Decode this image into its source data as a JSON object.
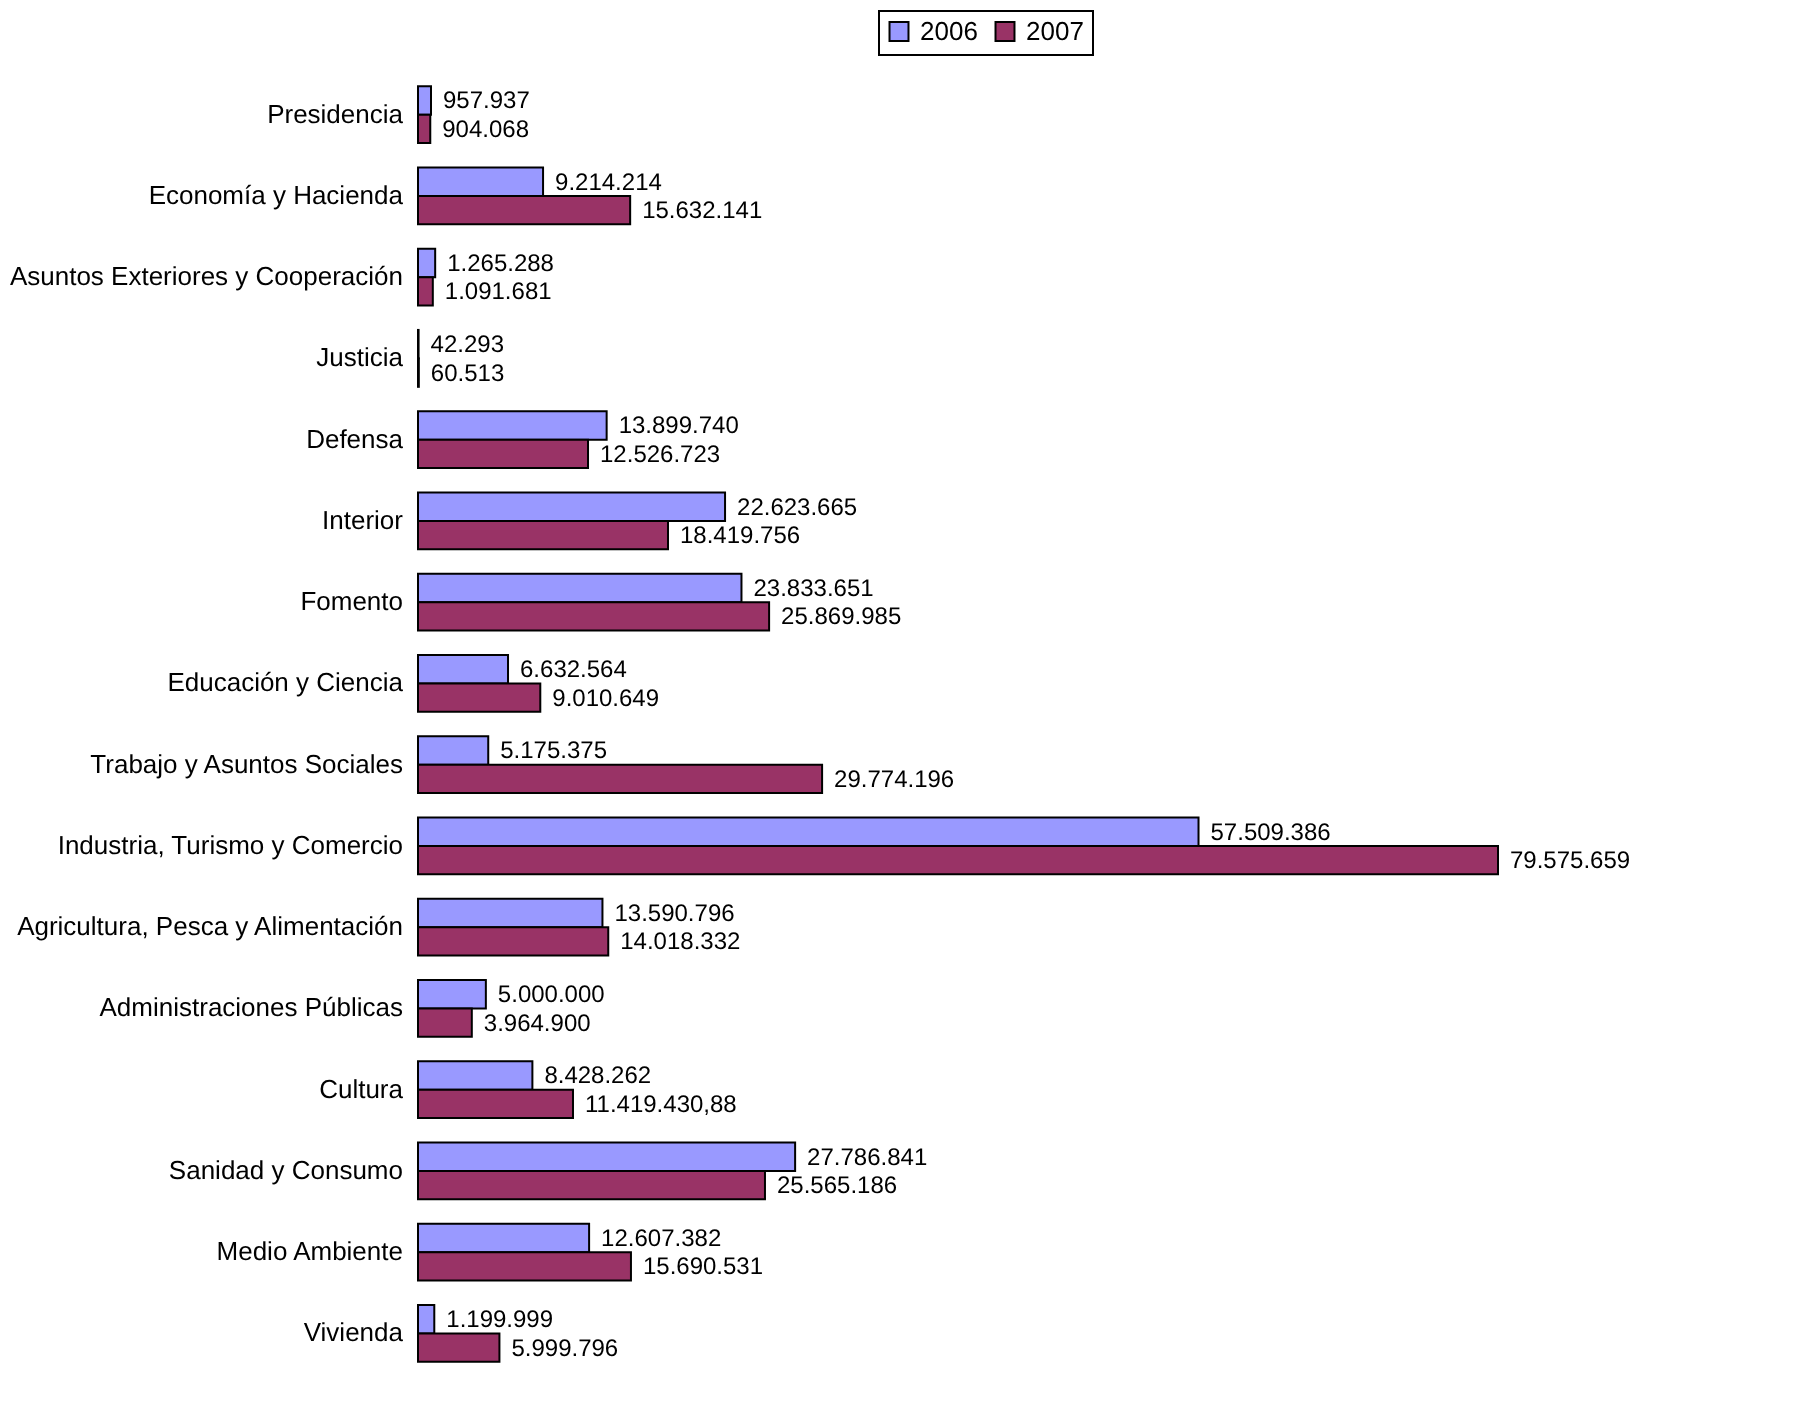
{
  "chart_data": {
    "type": "bar",
    "orientation": "horizontal",
    "legend": "top right",
    "categories": [
      "Presidencia",
      "Economía y Hacienda",
      "Asuntos Exteriores y Cooperación",
      "Justicia",
      "Defensa",
      "Interior",
      "Fomento",
      "Educación y Ciencia",
      "Trabajo y Asuntos Sociales",
      "Industria, Turismo y Comercio",
      "Agricultura, Pesca y Alimentación",
      "Administraciones Públicas",
      "Cultura",
      "Sanidad y Consumo",
      "Medio Ambiente",
      "Vivienda"
    ],
    "series": [
      {
        "name": "2006",
        "color": "#9999ff",
        "values": [
          957937,
          9214214,
          1265288,
          42293,
          13899740,
          22623665,
          23833651,
          6632564,
          5175375,
          57509386,
          13590796,
          5000000,
          8428262,
          27786841,
          12607382,
          1199999
        ],
        "value_labels": [
          "957.937",
          "9.214.214",
          "1.265.288",
          "42.293",
          "13.899.740",
          "22.623.665",
          "23.833.651",
          "6.632.564",
          "5.175.375",
          "57.509.386",
          "13.590.796",
          "5.000.000",
          "8.428.262",
          "27.786.841",
          "12.607.382",
          "1.199.999"
        ]
      },
      {
        "name": "2007",
        "color": "#993366",
        "values": [
          904068,
          15632141,
          1091681,
          60513,
          12526723,
          18419756,
          25869985,
          9010649,
          29774196,
          79575659,
          14018332,
          3964900,
          11419430.88,
          25565186,
          15690531,
          5999796
        ],
        "value_labels": [
          "904.068",
          "15.632.141",
          "1.091.681",
          "60.513",
          "12.526.723",
          "18.419.756",
          "25.869.985",
          "9.010.649",
          "29.774.196",
          "79.575.659",
          "14.018.332",
          "3.964.900",
          "11.419.430,88",
          "25.565.186",
          "15.690.531",
          "5.999.796"
        ]
      }
    ]
  }
}
